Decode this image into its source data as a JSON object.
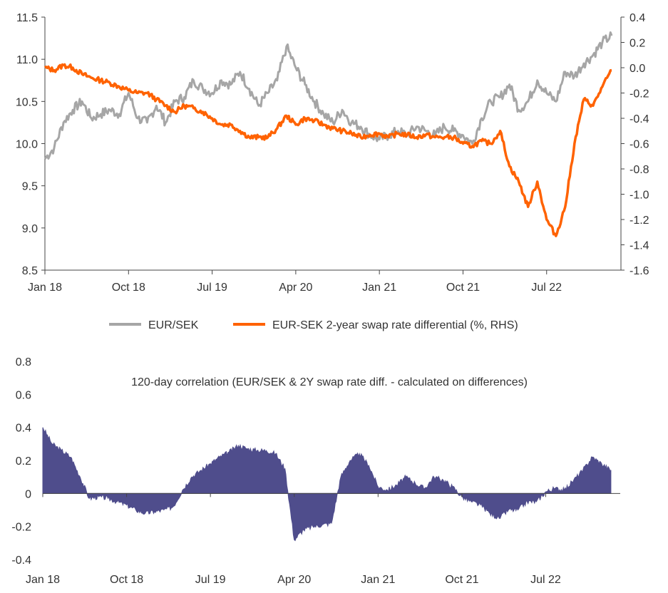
{
  "chart_data": [
    {
      "type": "line",
      "x_ticks": [
        "Jan 18",
        "Oct 18",
        "Jul 19",
        "Apr 20",
        "Jan 21",
        "Oct 21",
        "Jul 22"
      ],
      "y_left_ticks": [
        "11.5",
        "11.0",
        "10.5",
        "10.0",
        "9.5",
        "9.0",
        "8.5"
      ],
      "y_right_ticks": [
        "0.4",
        "0.2",
        "0.0",
        "-0.2",
        "-0.4",
        "-0.6",
        "-0.8",
        "-1.0",
        "-1.2",
        "-1.4",
        "-1.6"
      ],
      "ylim_left": [
        8.5,
        11.5
      ],
      "ylim_right": [
        -1.6,
        0.4
      ],
      "legend_position": "bottom",
      "series": [
        {
          "name": "EUR/SEK",
          "axis": "left",
          "color": "#a6a6a6",
          "x": [
            "2018-01",
            "2018-02",
            "2018-03",
            "2018-04",
            "2018-05",
            "2018-06",
            "2018-07",
            "2018-08",
            "2018-09",
            "2018-10",
            "2018-11",
            "2018-12",
            "2019-01",
            "2019-02",
            "2019-03",
            "2019-04",
            "2019-05",
            "2019-06",
            "2019-07",
            "2019-08",
            "2019-09",
            "2019-10",
            "2019-11",
            "2019-12",
            "2020-01",
            "2020-02",
            "2020-03",
            "2020-04",
            "2020-05",
            "2020-06",
            "2020-07",
            "2020-08",
            "2020-09",
            "2020-10",
            "2020-11",
            "2020-12",
            "2021-01",
            "2021-02",
            "2021-03",
            "2021-04",
            "2021-05",
            "2021-06",
            "2021-07",
            "2021-08",
            "2021-09",
            "2021-10",
            "2021-11",
            "2021-12",
            "2022-01",
            "2022-02",
            "2022-03",
            "2022-04",
            "2022-05",
            "2022-06",
            "2022-07",
            "2022-08",
            "2022-09",
            "2022-10",
            "2022-11",
            "2022-12",
            "2023-01",
            "2023-02"
          ],
          "values": [
            9.82,
            9.95,
            10.25,
            10.4,
            10.5,
            10.3,
            10.35,
            10.4,
            10.35,
            10.6,
            10.3,
            10.25,
            10.45,
            10.25,
            10.5,
            10.55,
            10.75,
            10.65,
            10.6,
            10.75,
            10.7,
            10.85,
            10.65,
            10.45,
            10.6,
            10.75,
            11.15,
            10.9,
            10.7,
            10.5,
            10.35,
            10.25,
            10.4,
            10.25,
            10.2,
            10.1,
            10.05,
            10.1,
            10.15,
            10.1,
            10.2,
            10.15,
            10.1,
            10.2,
            10.15,
            10.1,
            10.0,
            10.3,
            10.5,
            10.55,
            10.7,
            10.4,
            10.5,
            10.75,
            10.6,
            10.5,
            10.85,
            10.8,
            10.95,
            11.05,
            11.2,
            11.28
          ]
        },
        {
          "name": "EUR-SEK 2-year swap rate differential (%, RHS)",
          "axis": "right",
          "color": "#ff6200",
          "x": [
            "2018-01",
            "2018-02",
            "2018-03",
            "2018-04",
            "2018-05",
            "2018-06",
            "2018-07",
            "2018-08",
            "2018-09",
            "2018-10",
            "2018-11",
            "2018-12",
            "2019-01",
            "2019-02",
            "2019-03",
            "2019-04",
            "2019-05",
            "2019-06",
            "2019-07",
            "2019-08",
            "2019-09",
            "2019-10",
            "2019-11",
            "2019-12",
            "2020-01",
            "2020-02",
            "2020-03",
            "2020-04",
            "2020-05",
            "2020-06",
            "2020-07",
            "2020-08",
            "2020-09",
            "2020-10",
            "2020-11",
            "2020-12",
            "2021-01",
            "2021-02",
            "2021-03",
            "2021-04",
            "2021-05",
            "2021-06",
            "2021-07",
            "2021-08",
            "2021-09",
            "2021-10",
            "2021-11",
            "2021-12",
            "2022-01",
            "2022-02",
            "2022-03",
            "2022-04",
            "2022-05",
            "2022-06",
            "2022-07",
            "2022-08",
            "2022-09",
            "2022-10",
            "2022-11",
            "2022-12",
            "2023-01",
            "2023-02"
          ],
          "values": [
            0.0,
            -0.02,
            0.02,
            0.0,
            -0.05,
            -0.08,
            -0.1,
            -0.12,
            -0.15,
            -0.18,
            -0.2,
            -0.2,
            -0.25,
            -0.3,
            -0.35,
            -0.3,
            -0.32,
            -0.35,
            -0.4,
            -0.45,
            -0.45,
            -0.5,
            -0.55,
            -0.55,
            -0.55,
            -0.48,
            -0.38,
            -0.45,
            -0.4,
            -0.42,
            -0.45,
            -0.48,
            -0.5,
            -0.52,
            -0.55,
            -0.53,
            -0.52,
            -0.55,
            -0.52,
            -0.53,
            -0.55,
            -0.53,
            -0.55,
            -0.55,
            -0.55,
            -0.6,
            -0.62,
            -0.58,
            -0.6,
            -0.5,
            -0.78,
            -0.9,
            -1.1,
            -0.9,
            -1.2,
            -1.33,
            -1.1,
            -0.6,
            -0.25,
            -0.3,
            -0.15,
            -0.02
          ]
        }
      ]
    },
    {
      "type": "area",
      "title": "120-day correlation (EUR/SEK & 2Y swap rate diff. - calculated on differences)",
      "x_ticks": [
        "Jan 18",
        "Oct 18",
        "Jul 19",
        "Apr 20",
        "Jan 21",
        "Oct 21",
        "Jul 22"
      ],
      "y_ticks": [
        "0.8",
        "0.6",
        "0.4",
        "0.2",
        "0",
        "-0.2",
        "-0.4"
      ],
      "ylim": [
        -0.4,
        0.8
      ],
      "color": "#4f4d8c",
      "series": [
        {
          "x": [
            "2018-01",
            "2018-02",
            "2018-03",
            "2018-04",
            "2018-05",
            "2018-06",
            "2018-07",
            "2018-08",
            "2018-09",
            "2018-10",
            "2018-11",
            "2018-12",
            "2019-01",
            "2019-02",
            "2019-03",
            "2019-04",
            "2019-05",
            "2019-06",
            "2019-07",
            "2019-08",
            "2019-09",
            "2019-10",
            "2019-11",
            "2019-12",
            "2020-01",
            "2020-02",
            "2020-03",
            "2020-04",
            "2020-05",
            "2020-06",
            "2020-07",
            "2020-08",
            "2020-09",
            "2020-10",
            "2020-11",
            "2020-12",
            "2021-01",
            "2021-02",
            "2021-03",
            "2021-04",
            "2021-05",
            "2021-06",
            "2021-07",
            "2021-08",
            "2021-09",
            "2021-10",
            "2021-11",
            "2021-12",
            "2022-01",
            "2022-02",
            "2022-03",
            "2022-04",
            "2022-05",
            "2022-06",
            "2022-07",
            "2022-08",
            "2022-09",
            "2022-10",
            "2022-11",
            "2022-12",
            "2023-01",
            "2023-02"
          ],
          "values": [
            0.4,
            0.3,
            0.26,
            0.22,
            0.1,
            -0.03,
            -0.02,
            -0.03,
            -0.05,
            -0.07,
            -0.1,
            -0.12,
            -0.11,
            -0.1,
            -0.08,
            0.02,
            0.1,
            0.14,
            0.18,
            0.22,
            0.25,
            0.29,
            0.27,
            0.26,
            0.26,
            0.24,
            0.15,
            -0.28,
            -0.22,
            -0.2,
            -0.19,
            -0.18,
            0.1,
            0.2,
            0.24,
            0.17,
            0.04,
            0.02,
            0.05,
            0.1,
            0.06,
            0.03,
            0.1,
            0.08,
            0.04,
            -0.02,
            -0.05,
            -0.07,
            -0.12,
            -0.15,
            -0.1,
            -0.1,
            -0.05,
            -0.05,
            0.01,
            0.03,
            0.02,
            0.08,
            0.14,
            0.22,
            0.18,
            0.14
          ]
        }
      ]
    }
  ]
}
